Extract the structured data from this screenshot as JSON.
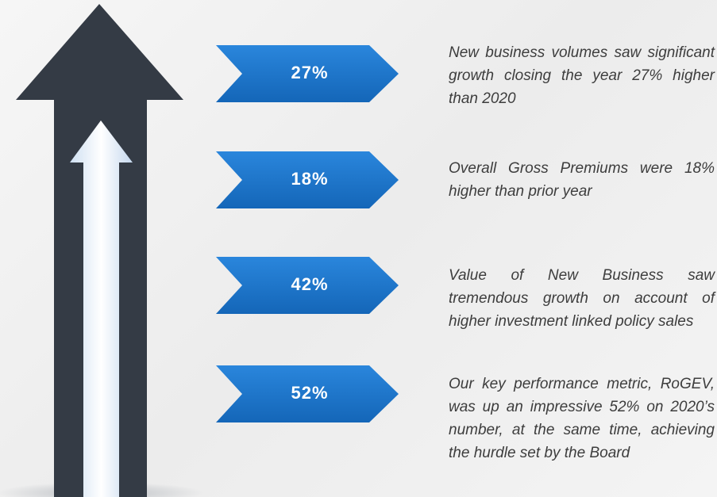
{
  "items": [
    {
      "badge": "27%",
      "text": "New business volumes saw significant growth closing the year 27% higher than 2020"
    },
    {
      "badge": "18%",
      "text": "Overall Gross Premiums were 18% higher than prior year"
    },
    {
      "badge": "42%",
      "text": "Value of New Business saw tremendous growth on account of higher investment linked policy sales"
    },
    {
      "badge": "52%",
      "text": "Our key performance metric, RoGEV, was up an impressive 52% on 2020’s number, at the same time, achieving the hurdle set by the Board"
    }
  ]
}
